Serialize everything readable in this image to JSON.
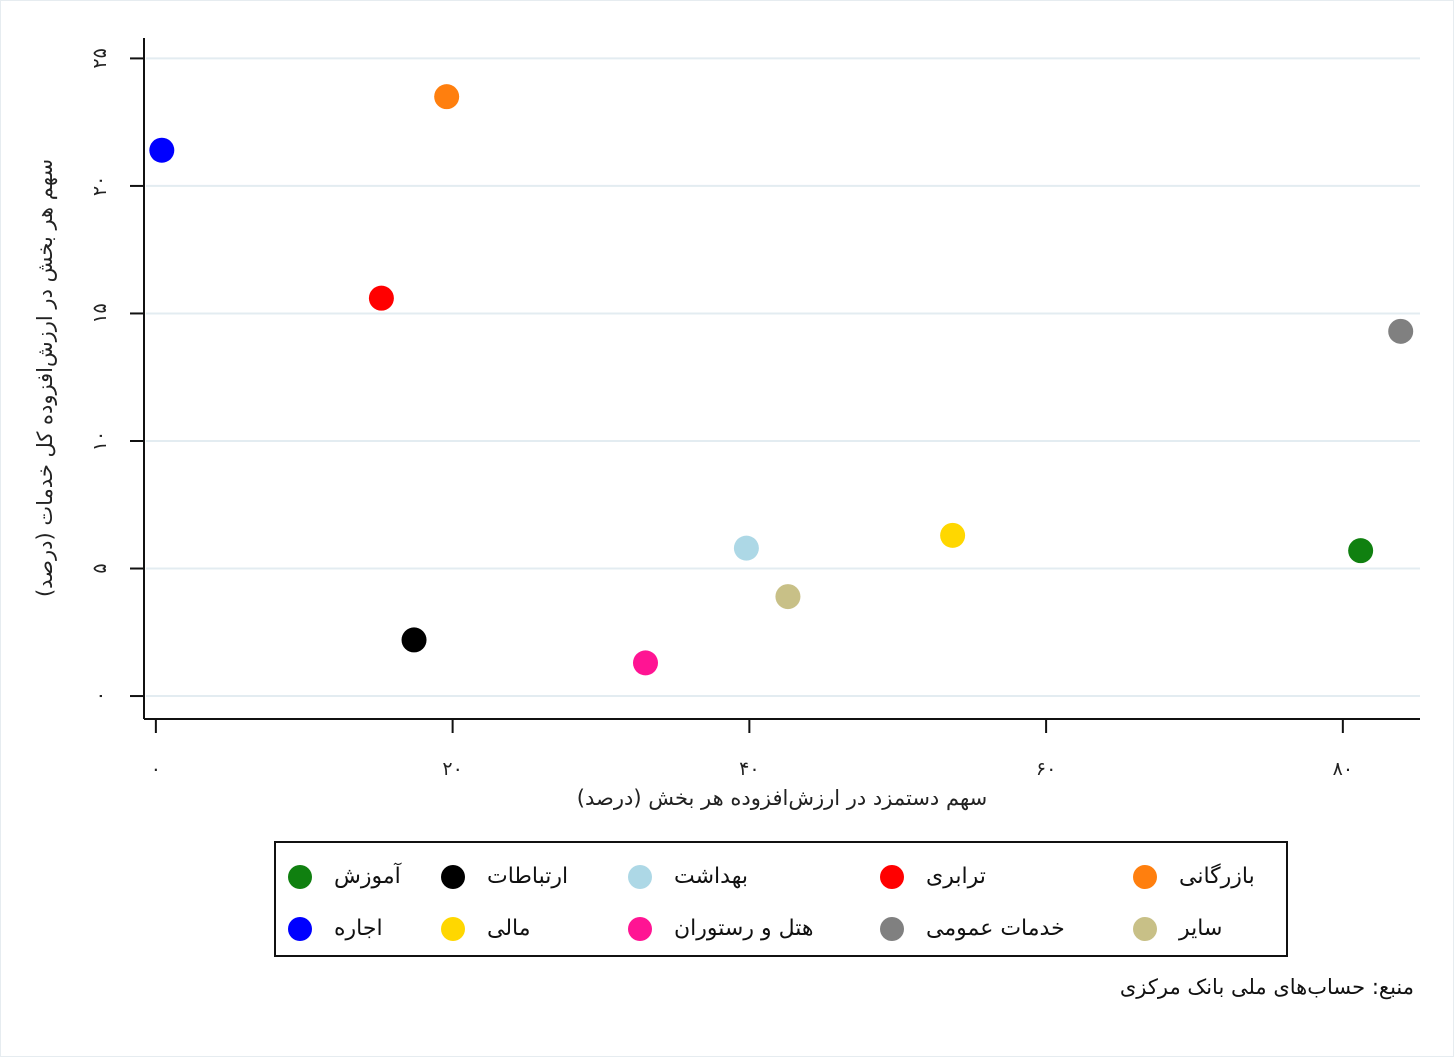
{
  "chart_data": {
    "type": "scatter",
    "title": "",
    "xlabel": "سهم دستمزد در ارزش‌افزوده هر بخش (درصد)",
    "ylabel": "سهم هر بخش در ارزش‌افزوده کل خدمات (درصد)",
    "xlim": [
      -0.8,
      85.2
    ],
    "ylim": [
      -0.9,
      25.8
    ],
    "x_ticks": [
      0,
      20,
      40,
      60,
      80
    ],
    "x_tick_labels": [
      "۰",
      "۲۰",
      "۴۰",
      "۶۰",
      "۸۰"
    ],
    "y_ticks": [
      0,
      5,
      10,
      15,
      20,
      25
    ],
    "y_tick_labels": [
      "۰",
      "۵",
      "۱۰",
      "۱۵",
      "۲۰",
      "۲۵"
    ],
    "grid": true,
    "legend_position": "bottom",
    "series": [
      {
        "name": "آموزش",
        "color": "#108010",
        "x": [
          81.2
        ],
        "y": [
          5.7
        ]
      },
      {
        "name": "ارتباطات",
        "color": "#000000",
        "x": [
          17.4
        ],
        "y": [
          2.2
        ]
      },
      {
        "name": "بهداشت",
        "color": "#add8e6",
        "x": [
          39.8
        ],
        "y": [
          5.8
        ]
      },
      {
        "name": "ترابری",
        "color": "#ff0000",
        "x": [
          15.2
        ],
        "y": [
          15.6
        ]
      },
      {
        "name": "بازرگانی",
        "color": "#ff7f0e",
        "x": [
          19.6
        ],
        "y": [
          23.5
        ]
      },
      {
        "name": "اجاره",
        "color": "#0000ff",
        "x": [
          0.4
        ],
        "y": [
          21.4
        ]
      },
      {
        "name": "مالی",
        "color": "#ffd700",
        "x": [
          53.7
        ],
        "y": [
          6.3
        ]
      },
      {
        "name": "هتل و رستوران",
        "color": "#ff1493",
        "x": [
          33.0
        ],
        "y": [
          1.3
        ]
      },
      {
        "name": "خدمات عمومی",
        "color": "#808080",
        "x": [
          83.9
        ],
        "y": [
          14.3
        ]
      },
      {
        "name": "سایر",
        "color": "#c8c087",
        "x": [
          42.6
        ],
        "y": [
          3.9
        ]
      }
    ]
  },
  "source_note": "منبع: حساب‌های ملی بانک مرکزی"
}
